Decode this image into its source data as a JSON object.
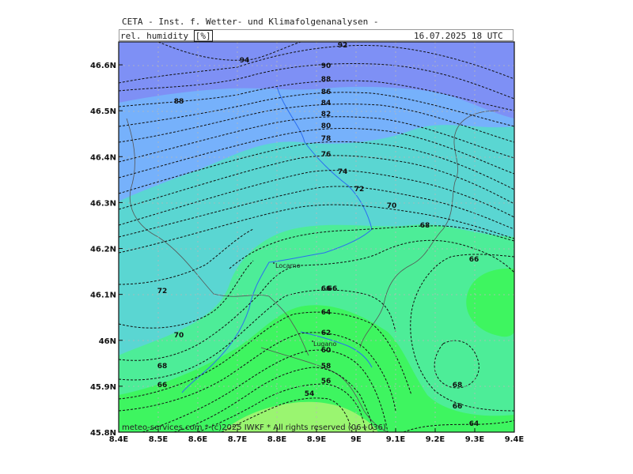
{
  "header": {
    "title": "CETA - Inst. f. Wetter- und Klimafolgenanalysen -",
    "variable": "rel. humidity",
    "unit": "[%]",
    "datetime": "16.07.2025 18 UTC"
  },
  "map": {
    "type": "contour",
    "variable": "relative humidity",
    "unit": "%",
    "lon_range": [
      8.4,
      9.4
    ],
    "lat_range": [
      45.8,
      46.65
    ],
    "x_ticks": [
      "8.4E",
      "8.5E",
      "8.6E",
      "8.7E",
      "8.8E",
      "8.9E",
      "9E",
      "9.1E",
      "9.2E",
      "9.3E",
      "9.4E"
    ],
    "y_ticks": [
      "45.8N",
      "45.9N",
      "46N",
      "46.1N",
      "46.2N",
      "46.3N",
      "46.4N",
      "46.5N",
      "46.6N"
    ],
    "contour_levels": [
      54,
      56,
      58,
      60,
      62,
      64,
      66,
      68,
      70,
      72,
      74,
      76,
      78,
      80,
      82,
      84,
      86,
      88,
      90,
      92,
      94
    ],
    "contour_labels": [
      "94",
      "92",
      "90",
      "88",
      "86",
      "84",
      "82",
      "80",
      "78",
      "76",
      "74",
      "72",
      "70",
      "68",
      "66",
      "88",
      "72",
      "70",
      "68",
      "66",
      "66",
      "64",
      "62",
      "60",
      "58",
      "56",
      "54",
      "68",
      "66",
      "64",
      "66"
    ],
    "cities": [
      "Locarno",
      "Lugano"
    ],
    "fill_colors": {
      "very_high": "#7e90f5",
      "high": "#76b1fb",
      "mid_high": "#5ad6d2",
      "mid": "#4ded98",
      "low": "#3ef560",
      "very_low": "#9af570",
      "lake": "#2b6ef0",
      "border": "#555555"
    }
  },
  "footer": {
    "credit": "meteo-services.com * (c)2025 IWKF * All rights reserved (06+036)"
  }
}
